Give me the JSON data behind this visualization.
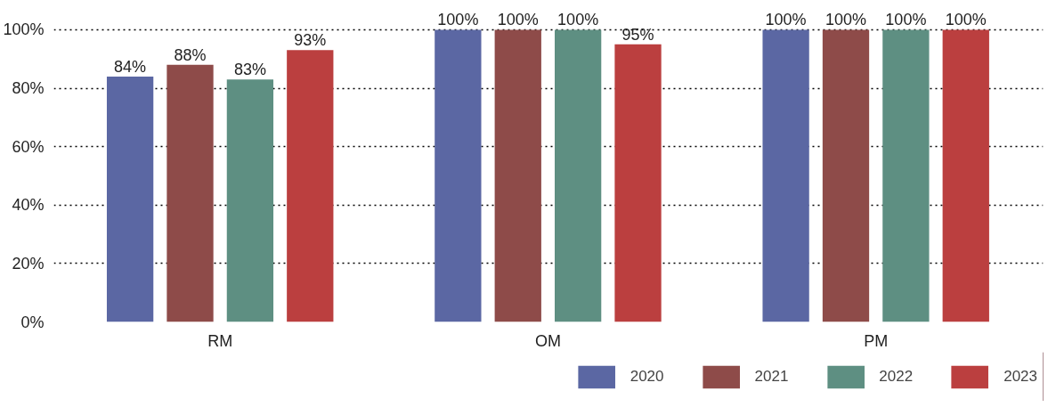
{
  "chart_data": {
    "type": "bar",
    "categories": [
      "RM",
      "OM",
      "PM"
    ],
    "series": [
      {
        "name": "2020",
        "color": "#5b67a3",
        "values": [
          84,
          100,
          100
        ],
        "value_labels": [
          "84%",
          "100%",
          "100%"
        ]
      },
      {
        "name": "2021",
        "color": "#8e4b49",
        "values": [
          88,
          100,
          100
        ],
        "value_labels": [
          "88%",
          "100%",
          "100%"
        ]
      },
      {
        "name": "2022",
        "color": "#5e8f82",
        "values": [
          83,
          100,
          100
        ],
        "value_labels": [
          "83%",
          "100%",
          "100%"
        ]
      },
      {
        "name": "2023",
        "color": "#bb3f3f",
        "values": [
          93,
          95,
          100
        ],
        "value_labels": [
          "93%",
          "95%",
          "100%"
        ]
      }
    ],
    "ylim": [
      0,
      100
    ],
    "yticks": [
      {
        "value": 0,
        "label": "0%"
      },
      {
        "value": 20,
        "label": "20%"
      },
      {
        "value": 40,
        "label": "40%"
      },
      {
        "value": 60,
        "label": "60%"
      },
      {
        "value": 80,
        "label": "80%"
      },
      {
        "value": 100,
        "label": "100%"
      }
    ],
    "grid": "y",
    "legend": "bottom right"
  }
}
